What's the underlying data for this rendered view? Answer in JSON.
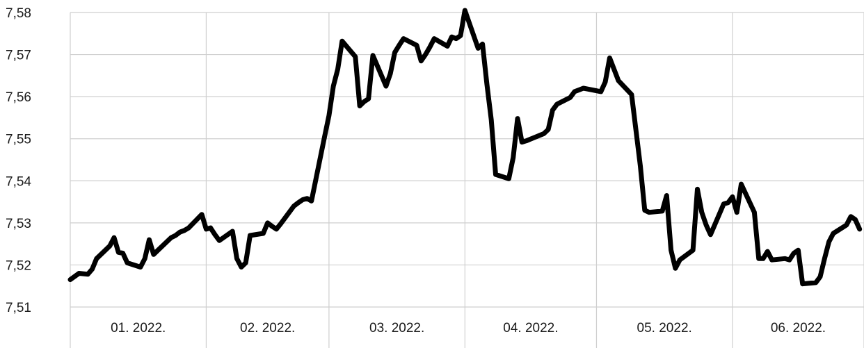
{
  "chart_data": {
    "type": "line",
    "title": "",
    "xlabel": "",
    "ylabel": "",
    "ylim": [
      7.51,
      7.58
    ],
    "y_ticks": [
      "7,51",
      "7,52",
      "7,53",
      "7,54",
      "7,55",
      "7,56",
      "7,57",
      "7,58"
    ],
    "x_tick_labels": [
      "01. 2022.",
      "02. 2022.",
      "03. 2022.",
      "04. 2022.",
      "05. 2022.",
      "06. 2022."
    ],
    "grid": true,
    "legend": "none",
    "line_color": "#000000",
    "series": [
      {
        "x": [
          "2022-01-01",
          "2022-01-03",
          "2022-01-05",
          "2022-01-06",
          "2022-01-07",
          "2022-01-10",
          "2022-01-11",
          "2022-01-12",
          "2022-01-13",
          "2022-01-14",
          "2022-01-17",
          "2022-01-18",
          "2022-01-19",
          "2022-01-20",
          "2022-01-21",
          "2022-01-24",
          "2022-01-25",
          "2022-01-26",
          "2022-01-27",
          "2022-01-28",
          "2022-01-31",
          "2022-02-01",
          "2022-02-02",
          "2022-02-03",
          "2022-02-04",
          "2022-02-07",
          "2022-02-08",
          "2022-02-09",
          "2022-02-10",
          "2022-02-11",
          "2022-02-14",
          "2022-02-15",
          "2022-02-16",
          "2022-02-17",
          "2022-02-18",
          "2022-02-21",
          "2022-02-22",
          "2022-02-23",
          "2022-02-24",
          "2022-02-25",
          "2022-02-28",
          "2022-03-01",
          "2022-03-02",
          "2022-03-03",
          "2022-03-04",
          "2022-03-07",
          "2022-03-08",
          "2022-03-09",
          "2022-03-10",
          "2022-03-11",
          "2022-03-14",
          "2022-03-15",
          "2022-03-16",
          "2022-03-17",
          "2022-03-18",
          "2022-03-21",
          "2022-03-22",
          "2022-03-23",
          "2022-03-24",
          "2022-03-25",
          "2022-03-28",
          "2022-03-29",
          "2022-03-30",
          "2022-03-31",
          "2022-04-01",
          "2022-04-04",
          "2022-04-05",
          "2022-04-06",
          "2022-04-07",
          "2022-04-08",
          "2022-04-11",
          "2022-04-12",
          "2022-04-13",
          "2022-04-14",
          "2022-04-15",
          "2022-04-19",
          "2022-04-20",
          "2022-04-21",
          "2022-04-22",
          "2022-04-25",
          "2022-04-26",
          "2022-04-27",
          "2022-04-28",
          "2022-04-29",
          "2022-05-02",
          "2022-05-03",
          "2022-05-04",
          "2022-05-05",
          "2022-05-06",
          "2022-05-09",
          "2022-05-10",
          "2022-05-11",
          "2022-05-12",
          "2022-05-13",
          "2022-05-16",
          "2022-05-17",
          "2022-05-18",
          "2022-05-19",
          "2022-05-20",
          "2022-05-23",
          "2022-05-24",
          "2022-05-25",
          "2022-05-26",
          "2022-05-27",
          "2022-05-30",
          "2022-05-31",
          "2022-06-01",
          "2022-06-02",
          "2022-06-03",
          "2022-06-06",
          "2022-06-07",
          "2022-06-08",
          "2022-06-09",
          "2022-06-10",
          "2022-06-13",
          "2022-06-14",
          "2022-06-15",
          "2022-06-16",
          "2022-06-17",
          "2022-06-20",
          "2022-06-21",
          "2022-06-22",
          "2022-06-23",
          "2022-06-24",
          "2022-06-27",
          "2022-06-28",
          "2022-06-29",
          "2022-06-30"
        ],
        "y": [
          7.5165,
          7.518,
          7.5178,
          7.519,
          7.5215,
          7.5245,
          7.5265,
          7.523,
          7.5228,
          7.5205,
          7.5195,
          7.5215,
          7.526,
          7.5225,
          7.5235,
          7.5265,
          7.527,
          7.5278,
          7.5282,
          7.5288,
          7.532,
          7.5285,
          7.5288,
          7.5272,
          7.5258,
          7.528,
          7.5215,
          7.5195,
          7.5205,
          7.527,
          7.5275,
          7.53,
          7.5292,
          7.5285,
          7.5298,
          7.534,
          7.5348,
          7.5355,
          7.5358,
          7.5352,
          7.5505,
          7.5555,
          7.5625,
          7.5665,
          7.5732,
          7.5695,
          7.5578,
          7.5588,
          7.5595,
          7.5698,
          7.5625,
          7.5655,
          7.5705,
          7.5722,
          7.5738,
          7.5722,
          7.5685,
          7.57,
          7.5718,
          7.5738,
          7.572,
          7.5742,
          7.5738,
          7.5745,
          7.5805,
          7.5715,
          7.5725,
          7.563,
          7.5545,
          7.5415,
          7.5405,
          7.5455,
          7.5548,
          7.5492,
          7.5495,
          7.5512,
          7.5522,
          7.5568,
          7.5582,
          7.5598,
          7.5612,
          7.5616,
          7.562,
          7.5618,
          7.5612,
          7.5635,
          7.5692,
          7.5665,
          7.5638,
          7.5605,
          7.552,
          7.5435,
          7.533,
          7.5325,
          7.5328,
          7.5365,
          7.5235,
          7.5192,
          7.5212,
          7.5235,
          7.538,
          7.5325,
          7.5295,
          7.5272,
          7.5345,
          7.5348,
          7.5362,
          7.5325,
          7.5392,
          7.5325,
          7.5215,
          7.5215,
          7.5232,
          7.5212,
          7.5215,
          7.5212,
          7.5228,
          7.5235,
          7.5155,
          7.5158,
          7.5172,
          7.5215,
          7.5255,
          7.5275,
          7.5295,
          7.5315,
          7.5308,
          7.5285
        ]
      }
    ]
  }
}
